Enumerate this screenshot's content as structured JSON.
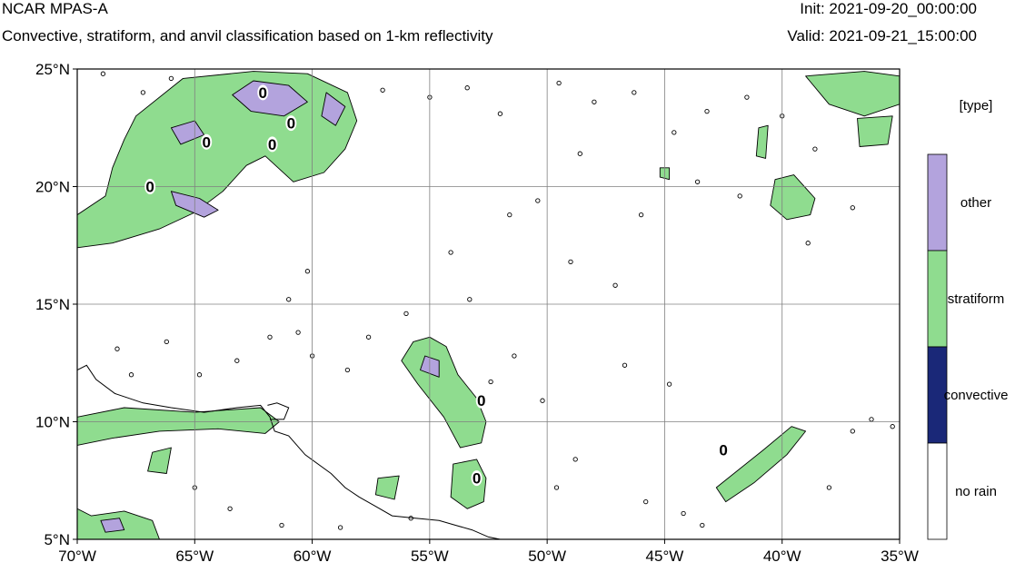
{
  "header": {
    "title_left": "NCAR MPAS-A",
    "subtitle_left": "Convective, stratiform, and anvil classification based on 1-km reflectivity",
    "title_right": "Init: 2021-09-20_00:00:00",
    "subtitle_right": "Valid: 2021-09-21_15:00:00"
  },
  "map": {
    "lon_range": [
      -70,
      -35
    ],
    "lat_range": [
      5,
      25
    ],
    "lon_ticks": [
      {
        "lon": -70,
        "label": "70°W"
      },
      {
        "lon": -65,
        "label": "65°W"
      },
      {
        "lon": -60,
        "label": "60°W"
      },
      {
        "lon": -55,
        "label": "55°W"
      },
      {
        "lon": -50,
        "label": "50°W"
      },
      {
        "lon": -45,
        "label": "45°W"
      },
      {
        "lon": -40,
        "label": "40°W"
      },
      {
        "lon": -35,
        "label": "35°W"
      }
    ],
    "lat_ticks": [
      {
        "lat": 5,
        "label": "5°N"
      },
      {
        "lat": 10,
        "label": "10°N"
      },
      {
        "lat": 15,
        "label": "15°N"
      },
      {
        "lat": 20,
        "label": "20°N"
      },
      {
        "lat": 25,
        "label": "25°N"
      }
    ],
    "gridline_color": "#808080",
    "contour_labels": [
      {
        "lon": -62.1,
        "lat": 24.0,
        "text": "0"
      },
      {
        "lon": -60.9,
        "lat": 22.7,
        "text": "0"
      },
      {
        "lon": -64.5,
        "lat": 21.9,
        "text": "0"
      },
      {
        "lon": -61.7,
        "lat": 21.8,
        "text": "0"
      },
      {
        "lon": -66.9,
        "lat": 20.0,
        "text": "0"
      },
      {
        "lon": -52.8,
        "lat": 10.9,
        "text": "0"
      },
      {
        "lon": -53.0,
        "lat": 7.6,
        "text": "0"
      },
      {
        "lon": -42.5,
        "lat": 8.8,
        "text": "0"
      }
    ],
    "precip_regions": [
      {
        "type": "stratiform",
        "points": [
          [
            -67.5,
            23.0
          ],
          [
            -65.5,
            24.6
          ],
          [
            -62.5,
            24.9
          ],
          [
            -60.2,
            24.8
          ],
          [
            -58.5,
            24.0
          ],
          [
            -58.1,
            22.8
          ],
          [
            -58.6,
            21.6
          ],
          [
            -59.5,
            20.6
          ],
          [
            -60.8,
            20.2
          ],
          [
            -62.0,
            21.3
          ],
          [
            -62.8,
            20.9
          ],
          [
            -63.8,
            19.8
          ],
          [
            -65.0,
            18.9
          ],
          [
            -66.5,
            18.2
          ],
          [
            -68.5,
            17.6
          ],
          [
            -70.0,
            17.4
          ],
          [
            -70.0,
            18.8
          ],
          [
            -68.8,
            19.6
          ],
          [
            -68.5,
            20.8
          ],
          [
            -68.0,
            22.0
          ]
        ]
      },
      {
        "type": "other",
        "points": [
          [
            -62.5,
            24.5
          ],
          [
            -61.0,
            24.3
          ],
          [
            -60.2,
            23.6
          ],
          [
            -61.2,
            23.0
          ],
          [
            -62.6,
            23.2
          ],
          [
            -63.4,
            23.9
          ]
        ]
      },
      {
        "type": "other",
        "points": [
          [
            -66.0,
            22.5
          ],
          [
            -65.0,
            22.8
          ],
          [
            -64.6,
            22.2
          ],
          [
            -65.6,
            21.8
          ]
        ]
      },
      {
        "type": "other",
        "points": [
          [
            -66.0,
            19.8
          ],
          [
            -64.8,
            19.5
          ],
          [
            -64.0,
            19.0
          ],
          [
            -64.6,
            18.7
          ],
          [
            -65.8,
            19.2
          ]
        ]
      },
      {
        "type": "other",
        "points": [
          [
            -59.4,
            24.0
          ],
          [
            -58.6,
            23.4
          ],
          [
            -59.0,
            22.6
          ],
          [
            -59.6,
            23.0
          ]
        ]
      },
      {
        "type": "stratiform",
        "points": [
          [
            -55.0,
            13.6
          ],
          [
            -54.3,
            13.2
          ],
          [
            -53.8,
            12.0
          ],
          [
            -53.0,
            11.0
          ],
          [
            -52.6,
            10.0
          ],
          [
            -52.8,
            9.1
          ],
          [
            -53.7,
            8.9
          ],
          [
            -54.4,
            10.2
          ],
          [
            -55.5,
            11.6
          ],
          [
            -56.2,
            12.6
          ],
          [
            -55.7,
            13.4
          ]
        ]
      },
      {
        "type": "other",
        "points": [
          [
            -55.2,
            12.8
          ],
          [
            -54.6,
            12.6
          ],
          [
            -54.6,
            11.9
          ],
          [
            -55.4,
            12.2
          ]
        ]
      },
      {
        "type": "stratiform",
        "points": [
          [
            -54.0,
            8.2
          ],
          [
            -53.0,
            8.4
          ],
          [
            -52.6,
            7.6
          ],
          [
            -52.7,
            6.6
          ],
          [
            -53.4,
            6.3
          ],
          [
            -54.1,
            6.8
          ]
        ]
      },
      {
        "type": "stratiform",
        "points": [
          [
            -70.0,
            10.2
          ],
          [
            -68.0,
            10.6
          ],
          [
            -65.0,
            10.4
          ],
          [
            -62.2,
            10.6
          ],
          [
            -61.4,
            10.0
          ],
          [
            -62.0,
            9.5
          ],
          [
            -64.0,
            9.7
          ],
          [
            -66.5,
            9.6
          ],
          [
            -68.5,
            9.3
          ],
          [
            -70.0,
            9.0
          ]
        ]
      },
      {
        "type": "stratiform",
        "points": [
          [
            -70.0,
            5.0
          ],
          [
            -66.5,
            5.0
          ],
          [
            -66.8,
            5.8
          ],
          [
            -68.0,
            6.2
          ],
          [
            -69.4,
            6.0
          ],
          [
            -70.0,
            6.3
          ]
        ]
      },
      {
        "type": "other",
        "points": [
          [
            -69.0,
            5.8
          ],
          [
            -68.2,
            5.9
          ],
          [
            -68.0,
            5.4
          ],
          [
            -68.8,
            5.3
          ]
        ]
      },
      {
        "type": "stratiform",
        "points": [
          [
            -42.8,
            7.2
          ],
          [
            -40.8,
            8.8
          ],
          [
            -39.6,
            9.8
          ],
          [
            -39.0,
            9.6
          ],
          [
            -39.8,
            8.6
          ],
          [
            -41.2,
            7.4
          ],
          [
            -42.4,
            6.6
          ]
        ]
      },
      {
        "type": "stratiform",
        "points": [
          [
            -40.3,
            20.3
          ],
          [
            -39.5,
            20.5
          ],
          [
            -38.6,
            19.5
          ],
          [
            -38.8,
            18.8
          ],
          [
            -39.8,
            18.6
          ],
          [
            -40.5,
            19.2
          ]
        ]
      },
      {
        "type": "stratiform",
        "points": [
          [
            -39.0,
            24.7
          ],
          [
            -36.5,
            24.9
          ],
          [
            -35.0,
            24.7
          ],
          [
            -35.0,
            23.5
          ],
          [
            -36.5,
            23.0
          ],
          [
            -38.0,
            23.5
          ]
        ]
      },
      {
        "type": "stratiform",
        "points": [
          [
            -36.8,
            22.9
          ],
          [
            -35.3,
            23.0
          ],
          [
            -35.5,
            21.8
          ],
          [
            -36.7,
            21.7
          ]
        ]
      },
      {
        "type": "stratiform",
        "points": [
          [
            -41.0,
            22.5
          ],
          [
            -40.6,
            22.6
          ],
          [
            -40.7,
            21.2
          ],
          [
            -41.1,
            21.3
          ]
        ]
      },
      {
        "type": "stratiform",
        "points": [
          [
            -45.2,
            20.8
          ],
          [
            -44.8,
            20.8
          ],
          [
            -44.8,
            20.3
          ],
          [
            -45.2,
            20.4
          ]
        ]
      },
      {
        "type": "stratiform",
        "points": [
          [
            -66.8,
            8.7
          ],
          [
            -66.0,
            8.9
          ],
          [
            -66.2,
            7.8
          ],
          [
            -67.0,
            7.9
          ]
        ]
      },
      {
        "type": "stratiform",
        "points": [
          [
            -57.2,
            7.6
          ],
          [
            -56.3,
            7.7
          ],
          [
            -56.5,
            6.7
          ],
          [
            -57.3,
            6.9
          ]
        ]
      }
    ],
    "coastline": [
      [
        [
          -70.0,
          12.2
        ],
        [
          -69.6,
          12.4
        ],
        [
          -69.2,
          11.8
        ],
        [
          -68.4,
          11.2
        ],
        [
          -67.2,
          10.8
        ],
        [
          -66.0,
          10.6
        ],
        [
          -64.6,
          10.4
        ],
        [
          -63.2,
          10.6
        ],
        [
          -62.2,
          10.7
        ],
        [
          -61.8,
          10.2
        ],
        [
          -61.6,
          9.6
        ],
        [
          -61.0,
          9.4
        ],
        [
          -60.3,
          8.6
        ],
        [
          -59.2,
          7.8
        ],
        [
          -58.6,
          7.2
        ],
        [
          -58.0,
          6.8
        ],
        [
          -57.3,
          6.4
        ],
        [
          -56.6,
          6.0
        ],
        [
          -55.6,
          5.9
        ],
        [
          -54.6,
          5.8
        ],
        [
          -53.9,
          5.6
        ],
        [
          -53.2,
          5.4
        ],
        [
          -52.5,
          5.1
        ],
        [
          -52.0,
          5.0
        ]
      ],
      [
        [
          -61.9,
          10.7
        ],
        [
          -61.5,
          10.8
        ],
        [
          -61.0,
          10.6
        ],
        [
          -61.2,
          10.1
        ],
        [
          -61.8,
          10.1
        ]
      ]
    ],
    "isolated_cells": [
      [
        -68.9,
        24.8
      ],
      [
        -67.2,
        24.0
      ],
      [
        -66.0,
        24.6
      ],
      [
        -57.0,
        24.1
      ],
      [
        -55.0,
        23.8
      ],
      [
        -53.4,
        24.2
      ],
      [
        -52.0,
        23.1
      ],
      [
        -49.5,
        24.4
      ],
      [
        -48.0,
        23.6
      ],
      [
        -46.3,
        24.0
      ],
      [
        -43.2,
        23.2
      ],
      [
        -41.5,
        23.8
      ],
      [
        -40.0,
        23.0
      ],
      [
        -38.6,
        21.6
      ],
      [
        -37.0,
        19.1
      ],
      [
        -43.6,
        20.2
      ],
      [
        -46.0,
        18.8
      ],
      [
        -49.0,
        16.8
      ],
      [
        -47.1,
        15.8
      ],
      [
        -53.3,
        15.2
      ],
      [
        -56.0,
        14.6
      ],
      [
        -57.6,
        13.6
      ],
      [
        -58.5,
        12.2
      ],
      [
        -60.0,
        12.8
      ],
      [
        -61.8,
        13.6
      ],
      [
        -63.2,
        12.6
      ],
      [
        -64.8,
        12.0
      ],
      [
        -66.2,
        13.4
      ],
      [
        -67.7,
        12.0
      ],
      [
        -68.3,
        13.1
      ],
      [
        -45.8,
        6.6
      ],
      [
        -44.2,
        6.1
      ],
      [
        -43.4,
        5.6
      ],
      [
        -38.0,
        7.2
      ],
      [
        -37.0,
        9.6
      ],
      [
        -36.2,
        10.1
      ],
      [
        -35.3,
        9.8
      ],
      [
        -48.8,
        8.4
      ],
      [
        -46.7,
        12.4
      ],
      [
        -44.8,
        11.6
      ],
      [
        -51.4,
        12.8
      ],
      [
        -52.4,
        11.7
      ],
      [
        -50.2,
        10.9
      ],
      [
        -49.6,
        7.2
      ],
      [
        -55.8,
        5.9
      ],
      [
        -58.8,
        5.5
      ],
      [
        -61.3,
        5.6
      ],
      [
        -63.5,
        6.3
      ],
      [
        -65.0,
        7.2
      ],
      [
        -60.2,
        16.4
      ],
      [
        -61.0,
        15.2
      ],
      [
        -60.6,
        13.8
      ],
      [
        -54.1,
        17.2
      ],
      [
        -51.6,
        18.8
      ],
      [
        -50.4,
        19.4
      ],
      [
        -48.6,
        21.4
      ],
      [
        -44.6,
        22.3
      ],
      [
        -41.8,
        19.6
      ],
      [
        -38.9,
        17.6
      ]
    ]
  },
  "legend": {
    "title": "[type]",
    "items": [
      {
        "label": "other",
        "color": "#b3a3dd"
      },
      {
        "label": "stratiform",
        "color": "#8fdc8f"
      },
      {
        "label": "convective",
        "color": "#1a2878"
      },
      {
        "label": "no rain",
        "color": "#ffffff"
      }
    ]
  }
}
